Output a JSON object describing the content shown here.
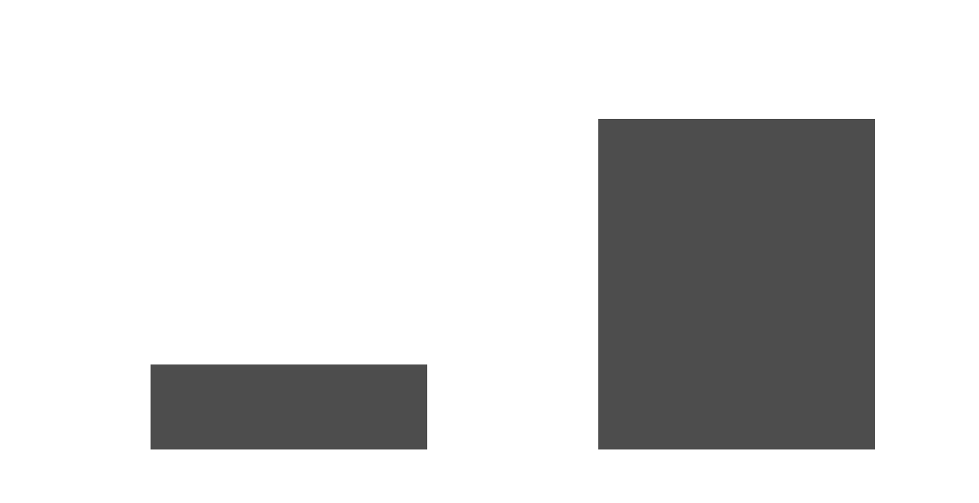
{
  "chart_data": {
    "type": "bar",
    "categories": [
      null,
      null
    ],
    "values": [
      25.7,
      100
    ],
    "color": "#4d4d4d",
    "ylim": [
      0,
      110
    ]
  }
}
